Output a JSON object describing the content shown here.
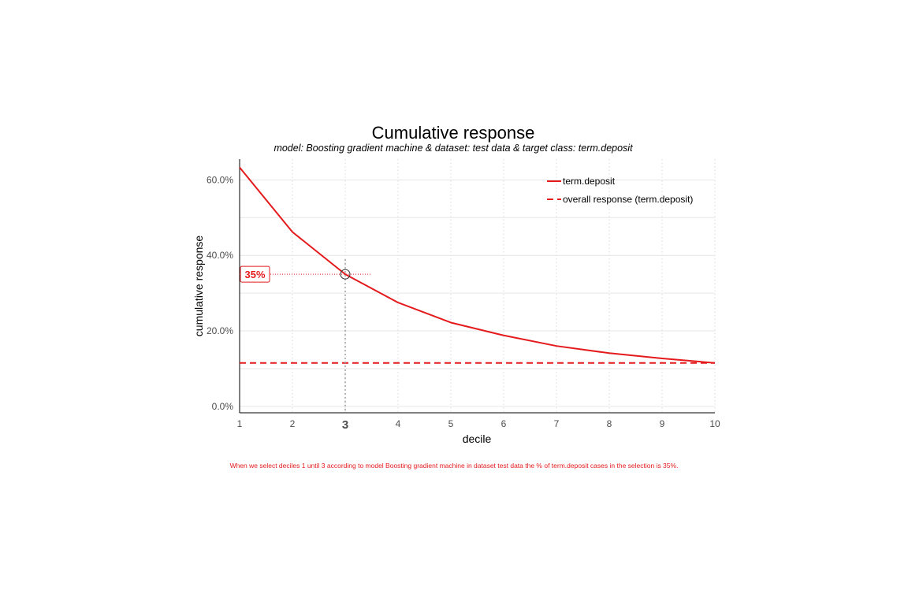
{
  "chart_data": {
    "type": "line",
    "title": "Cumulative response",
    "subtitle": "model: Boosting gradient machine  &  dataset: test data  &  target class: term.deposit",
    "xlabel": "decile",
    "ylabel": "cumulative response",
    "x": [
      1,
      2,
      3,
      4,
      5,
      6,
      7,
      8,
      9,
      10
    ],
    "x_tick_labels": [
      "1",
      "2",
      "3",
      "4",
      "5",
      "6",
      "7",
      "8",
      "9",
      "10"
    ],
    "y_ticks": [
      0,
      0.2,
      0.4,
      0.6
    ],
    "y_tick_labels": [
      "0.0%",
      "20.0%",
      "40.0%",
      "60.0%"
    ],
    "xlim": [
      1,
      10
    ],
    "ylim": [
      -0.017,
      0.655
    ],
    "grid": true,
    "legend_position": "top-right",
    "series": [
      {
        "name": "term.deposit",
        "style": "solid",
        "color": "#e41a1c",
        "values": [
          0.633,
          0.462,
          0.35,
          0.275,
          0.222,
          0.188,
          0.16,
          0.141,
          0.127,
          0.115
        ]
      },
      {
        "name": "overall response (term.deposit)",
        "style": "dashed",
        "color": "#e41a1c",
        "values": [
          0.115,
          0.115,
          0.115,
          0.115,
          0.115,
          0.115,
          0.115,
          0.115,
          0.115,
          0.115
        ]
      }
    ],
    "highlight": {
      "x": 3,
      "y": 0.35,
      "label": "35%"
    },
    "caption": "When we select deciles 1 until 3 according to model Boosting gradient machine in dataset test data the % of term.deposit cases in the selection is 35%."
  }
}
